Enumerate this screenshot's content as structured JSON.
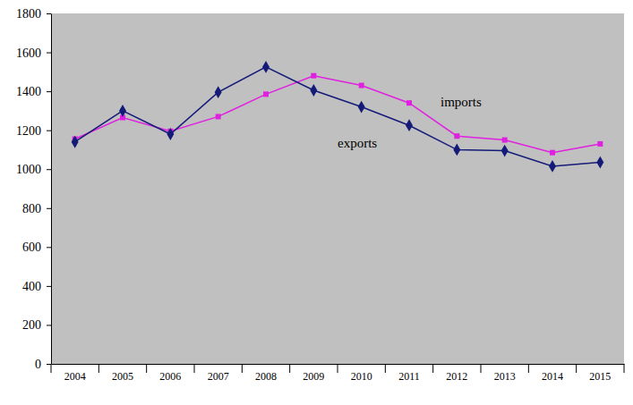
{
  "chart_data": {
    "type": "line",
    "categories": [
      "2004",
      "2005",
      "2006",
      "2007",
      "2008",
      "2009",
      "2010",
      "2011",
      "2012",
      "2013",
      "2014",
      "2015"
    ],
    "series": [
      {
        "name": "imports",
        "color": "#e020e0",
        "marker": "square",
        "values": [
          1155,
          1265,
          1195,
          1270,
          1385,
          1480,
          1430,
          1340,
          1170,
          1150,
          1085,
          1130
        ]
      },
      {
        "name": "exports",
        "color": "#141a78",
        "marker": "diamond",
        "values": [
          1140,
          1300,
          1180,
          1395,
          1525,
          1405,
          1320,
          1225,
          1100,
          1095,
          1015,
          1035
        ]
      }
    ],
    "ylim": [
      0,
      1800
    ],
    "yticks": [
      0,
      200,
      400,
      600,
      800,
      1000,
      1200,
      1400,
      1600,
      1800
    ],
    "grid": false
  }
}
